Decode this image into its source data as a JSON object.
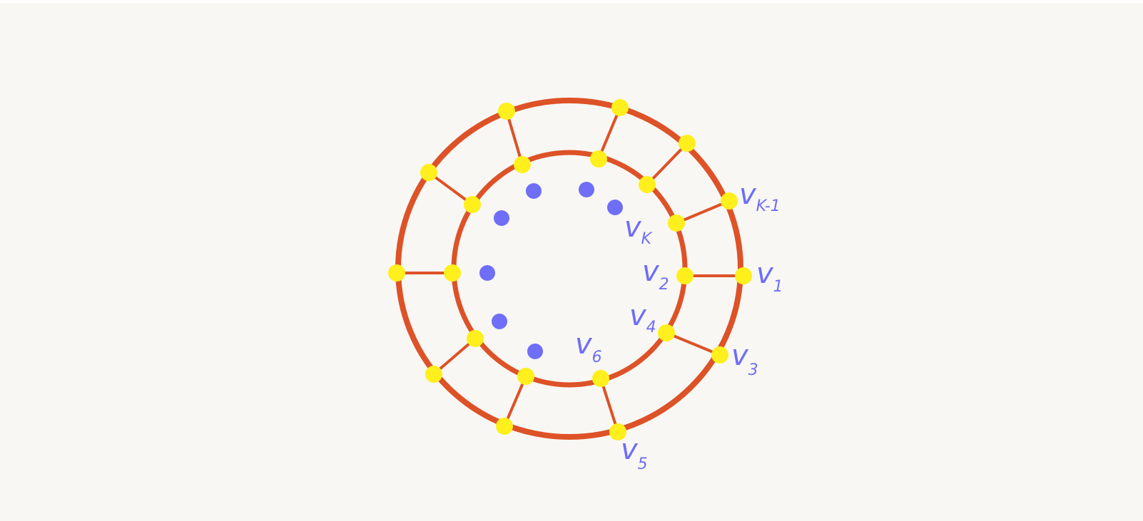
{
  "colors": {
    "background": "#f8f7f3",
    "edge": "#dd5227",
    "vertex": "#ffef1c",
    "dots": "#6e6ef7",
    "label": "#6e6ef7"
  },
  "labels": {
    "v1": {
      "base": "v",
      "sub": "1"
    },
    "v2": {
      "base": "v",
      "sub": "2"
    },
    "v3": {
      "base": "v",
      "sub": "3"
    },
    "v4": {
      "base": "v",
      "sub": "4"
    },
    "v5": {
      "base": "v",
      "sub": "5"
    },
    "v6": {
      "base": "v",
      "sub": "6"
    },
    "vk": {
      "base": "v",
      "sub": "K"
    },
    "vk1": {
      "base": "v",
      "sub": "K-1"
    }
  }
}
